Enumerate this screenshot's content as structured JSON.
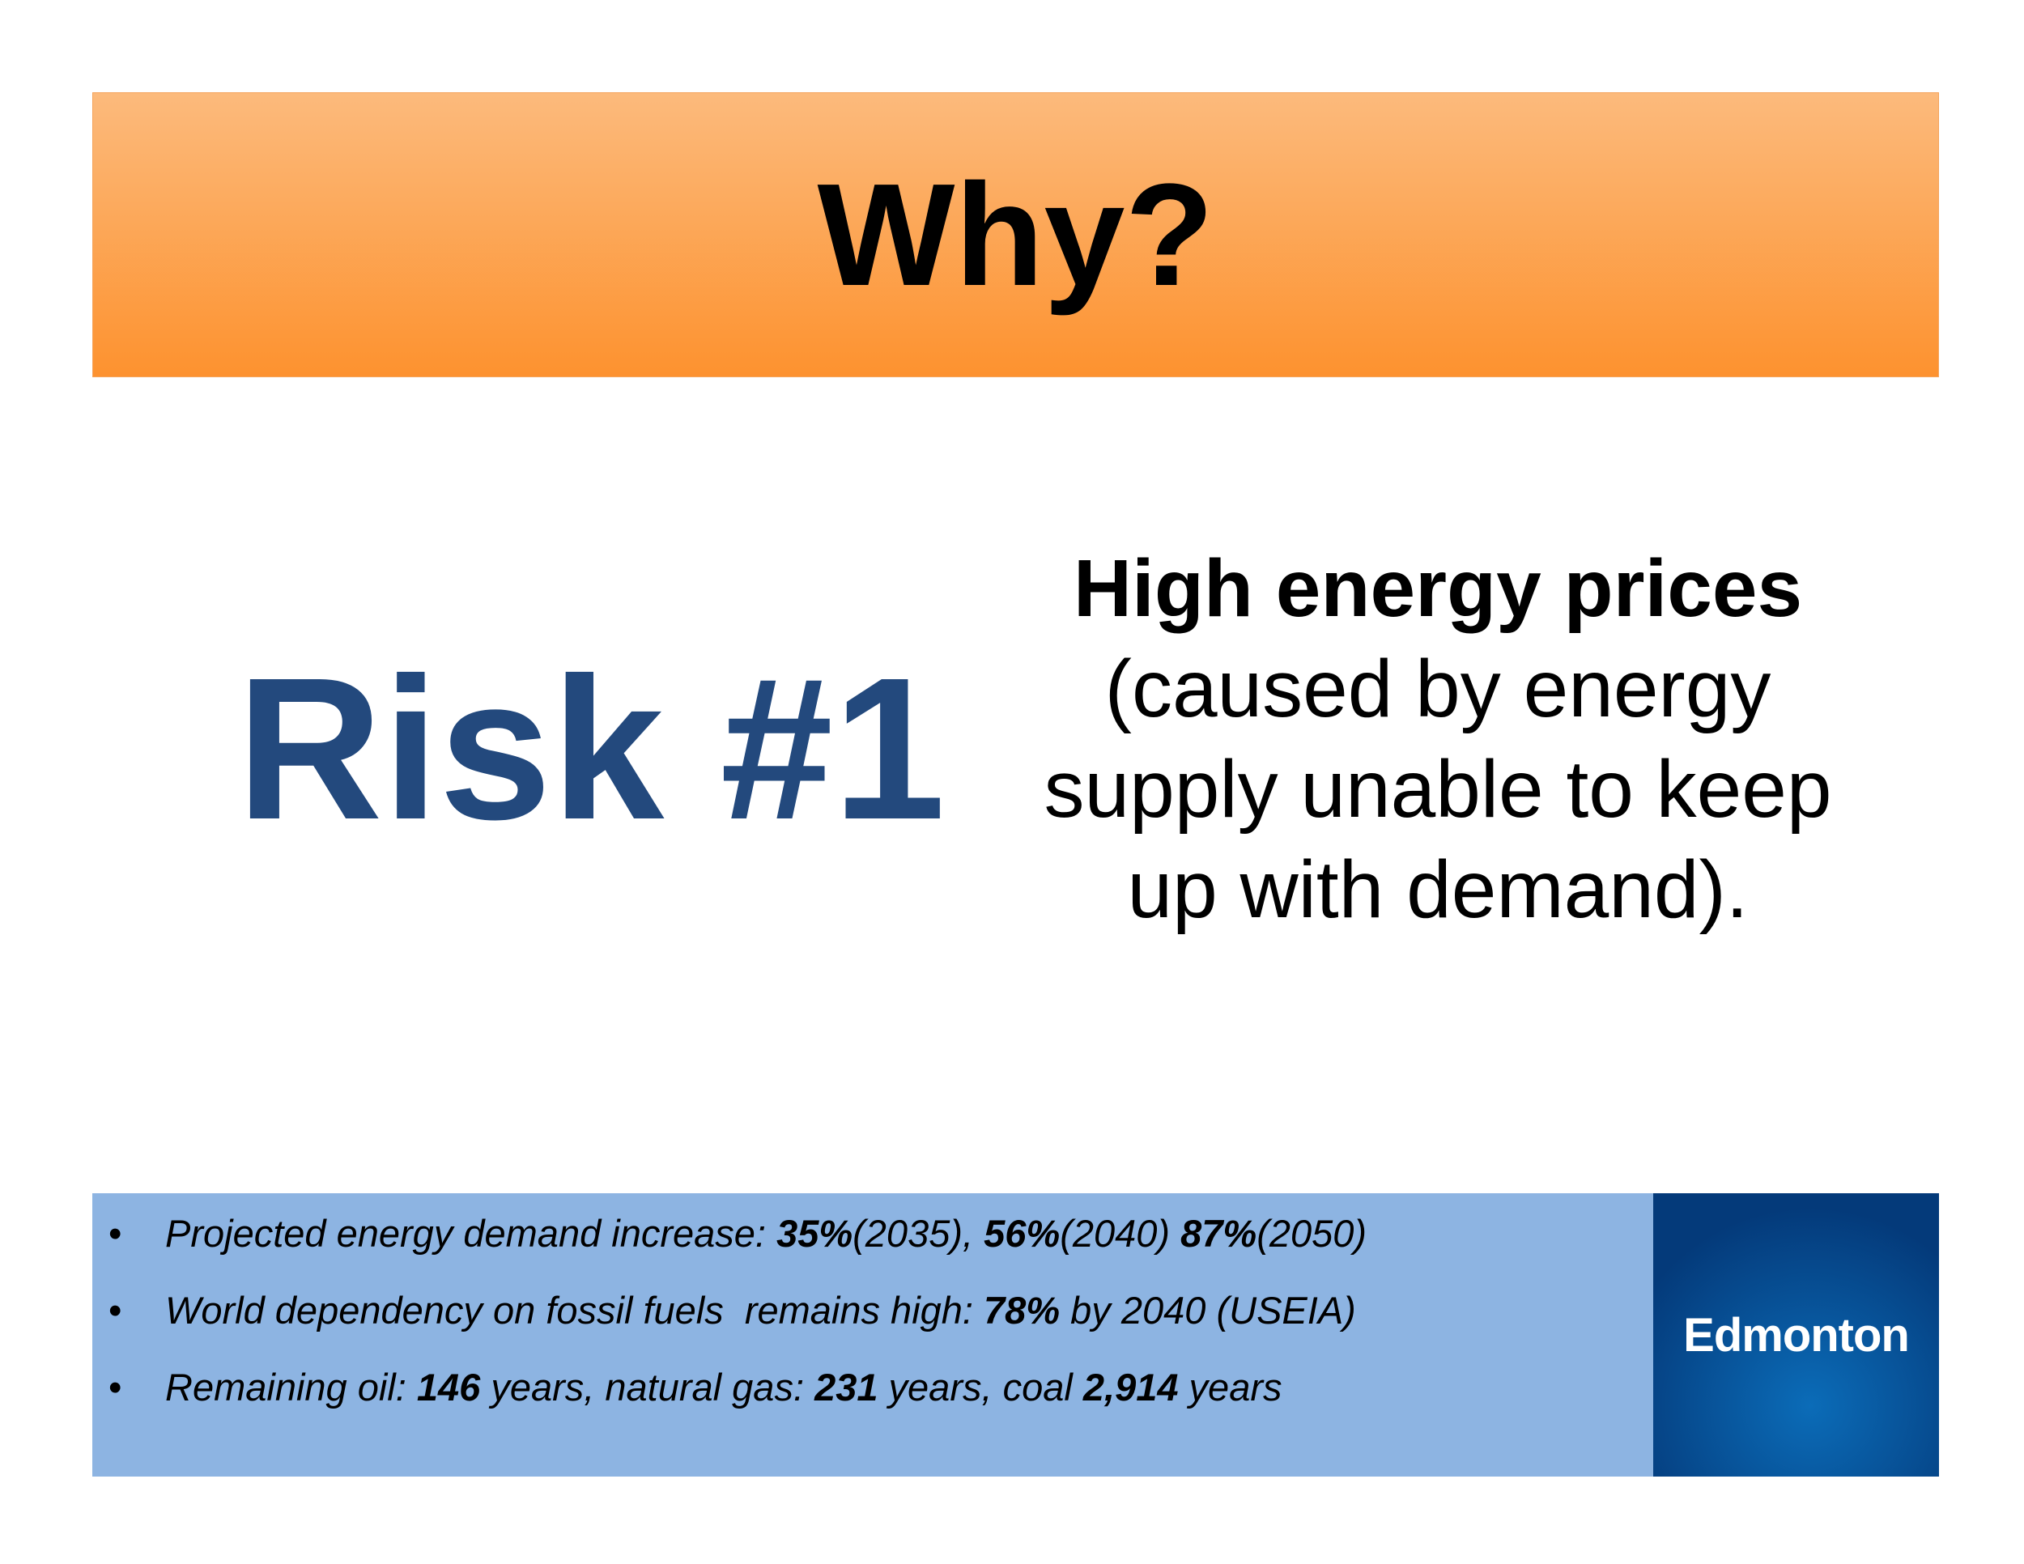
{
  "header": {
    "title": "Why?"
  },
  "risk": {
    "label": "Risk #1"
  },
  "description": {
    "heading": "High energy prices",
    "lines": [
      "(caused by energy",
      "supply unable to keep",
      "up with demand)."
    ]
  },
  "facts": {
    "bullets": [
      {
        "parts": [
          {
            "text": "Projected energy demand increase: ",
            "bold": false
          },
          {
            "text": "35%",
            "bold": true
          },
          {
            "text": "(2035), ",
            "bold": false
          },
          {
            "text": "56%",
            "bold": true
          },
          {
            "text": "(2040) ",
            "bold": false
          },
          {
            "text": "87%",
            "bold": true
          },
          {
            "text": "(2050)",
            "bold": false
          }
        ]
      },
      {
        "parts": [
          {
            "text": "World dependency on fossil fuels  remains high: ",
            "bold": false
          },
          {
            "text": "78%",
            "bold": true
          },
          {
            "text": " by 2040 (USEIA)",
            "bold": false
          }
        ]
      },
      {
        "parts": [
          {
            "text": "Remaining oil: ",
            "bold": false
          },
          {
            "text": "146",
            "bold": true
          },
          {
            "text": " years, natural gas: ",
            "bold": false
          },
          {
            "text": "231",
            "bold": true
          },
          {
            "text": " years, coal ",
            "bold": false
          },
          {
            "text": "2,914",
            "bold": true
          },
          {
            "text": " years",
            "bold": false
          }
        ]
      }
    ]
  },
  "logo": {
    "text": "Edmonton"
  }
}
